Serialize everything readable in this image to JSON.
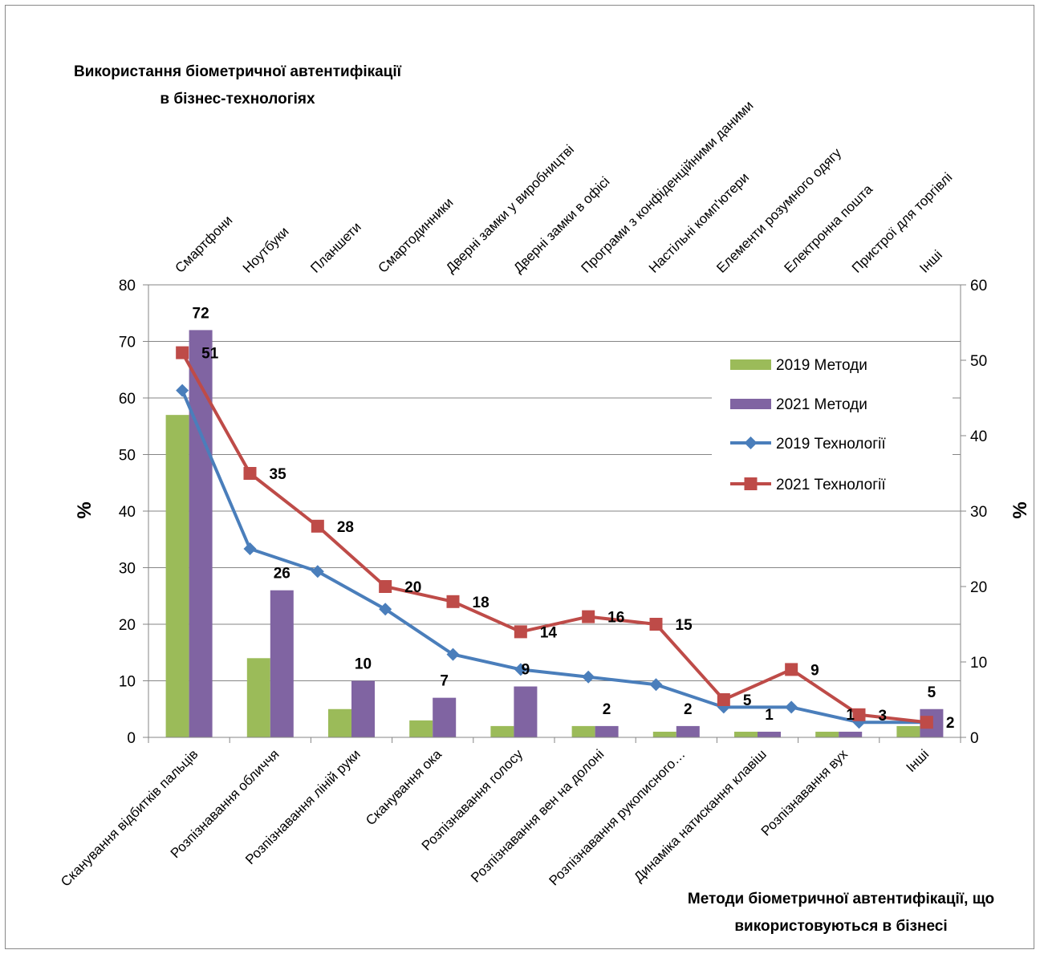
{
  "chart_data": {
    "type": "bar",
    "title_lines": [
      "Використання біометричної автентифікації",
      "в бізнес-технологіях"
    ],
    "xlabel_lines": [
      "Методи біометричної автентифікації, що",
      "використовуються в бізнесі"
    ],
    "ylabel": "%",
    "y2label": "%",
    "ylim": [
      0,
      80
    ],
    "y2lim": [
      0,
      60
    ],
    "yticks": [
      "0",
      "10",
      "20",
      "30",
      "40",
      "50",
      "60",
      "70",
      "80"
    ],
    "y2ticks": [
      "0",
      "10",
      "20",
      "30",
      "40",
      "50",
      "60"
    ],
    "grid": true,
    "legend_position": "right",
    "categories": [
      "Сканування відбитків пальців",
      "Розпізнавання обличчя",
      "Розпізнавання ліній руки",
      "Сканування ока",
      "Розпізнавання голосу",
      "Розпізнавання вен на долоні",
      "Розпізнавання рукописного…",
      "Динаміка натискання клавіш",
      "Розпізнавання вух",
      "Інші"
    ],
    "top_categories": [
      "Смартфони",
      "Ноутбуки",
      "Планшети",
      "Смартодинники",
      "Дверні замки у виробництві",
      "Дверні замки в офісі",
      "Програми з конфіденційними даними",
      "Настільні комп'ютери",
      "Елементи розумного одягу",
      "Електронна пошта",
      "Пристрої для торгівлі",
      "Інші"
    ],
    "bar_series": [
      {
        "name": "2019 Методи",
        "values": [
          57,
          14,
          5,
          3,
          2,
          2,
          1,
          1,
          1,
          2
        ],
        "color": "#9BBB59",
        "show_labels": false
      },
      {
        "name": "2021 Методи",
        "values": [
          72,
          26,
          10,
          7,
          9,
          2,
          2,
          1,
          1,
          5
        ],
        "color": "#8064A2",
        "show_labels": true
      }
    ],
    "line_series": [
      {
        "name": "2019 Технології",
        "axis": "secondary",
        "color": "#4A7EBB",
        "marker": "diamond",
        "values": [
          46,
          25,
          22,
          17,
          11,
          9,
          8,
          7,
          4,
          4,
          2,
          2
        ],
        "show_labels": false
      },
      {
        "name": "2021 Технології",
        "axis": "secondary",
        "color": "#BE4B48",
        "marker": "square",
        "values": [
          51,
          35,
          28,
          20,
          18,
          14,
          16,
          15,
          5,
          9,
          3,
          2
        ],
        "show_labels": true
      }
    ],
    "bar_label_text": [
      "72",
      "26",
      "10",
      "7",
      "9",
      "2",
      "2",
      "1",
      "1",
      "5"
    ],
    "line_label_text": [
      "51",
      "35",
      "28",
      "20",
      "18",
      "14",
      "16",
      "15",
      "5",
      "9",
      "3",
      "2"
    ]
  }
}
